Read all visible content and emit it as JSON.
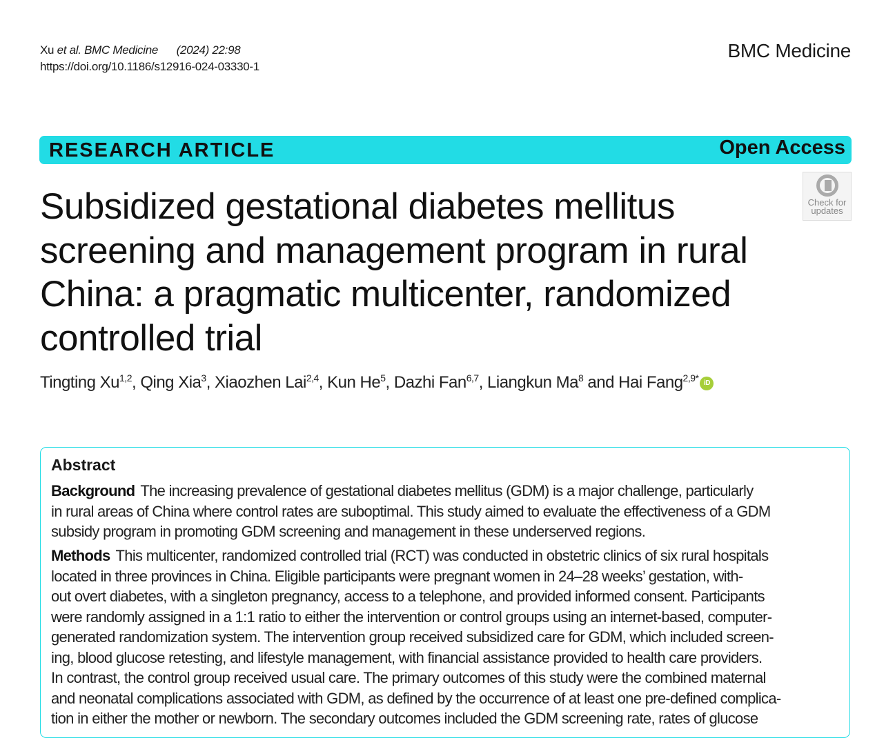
{
  "header": {
    "citation_authors": "Xu ",
    "citation_etal": "et al. BMC Medicine",
    "citation_year": "(2024) 22:98",
    "doi": "https://doi.org/10.1186/s12916-024-03330-1",
    "journal": "BMC Medicine"
  },
  "banner": {
    "type": "RESEARCH ARTICLE",
    "access": "Open Access"
  },
  "check_updates": {
    "line1": "Check for",
    "line2": "updates"
  },
  "title_lines": [
    "Subsidized gestational diabetes mellitus",
    "screening and management program in rural",
    "China: a pragmatic multicenter, randomized",
    "controlled trial"
  ],
  "authors": [
    {
      "name": "Tingting Xu",
      "aff": "1,2"
    },
    {
      "name": "Qing Xia",
      "aff": "3"
    },
    {
      "name": "Xiaozhen Lai",
      "aff": "2,4"
    },
    {
      "name": "Kun He",
      "aff": "5"
    },
    {
      "name": "Dazhi Fan",
      "aff": "6,7"
    },
    {
      "name": "Liangkun Ma",
      "aff": "8"
    },
    {
      "name": "Hai Fang",
      "aff": "2,9*"
    }
  ],
  "orcid_label": "iD",
  "abstract": {
    "heading": "Abstract",
    "background": {
      "label": "Background",
      "lines": [
        "The increasing prevalence of gestational diabetes mellitus (GDM) is a major challenge, particularly",
        "in rural areas of China where control rates are suboptimal. This study aimed to evaluate the effectiveness of a GDM",
        "subsidy program in promoting GDM screening and management in these underserved regions."
      ]
    },
    "methods": {
      "label": "Methods",
      "lines": [
        "This multicenter, randomized controlled trial (RCT) was conducted in obstetric clinics of six rural hospitals",
        "located in three provinces in China. Eligible participants were pregnant women in 24–28 weeks’ gestation, with-",
        "out overt diabetes, with a singleton pregnancy, access to a telephone, and provided informed consent. Participants",
        "were randomly assigned in a 1:1 ratio to either the intervention or control groups using an internet-based, computer-",
        "generated randomization system. The intervention group received subsidized care for GDM, which included screen-",
        "ing, blood glucose retesting, and lifestyle management, with financial assistance provided to health care providers.",
        "In contrast, the control group received usual care. The primary outcomes of this study were the combined maternal",
        "and neonatal complications associated with GDM, as defined by the occurrence of at least one pre-defined complica-",
        "tion in either the mother or newborn. The secondary outcomes included the GDM screening rate, rates of glucose"
      ]
    }
  }
}
